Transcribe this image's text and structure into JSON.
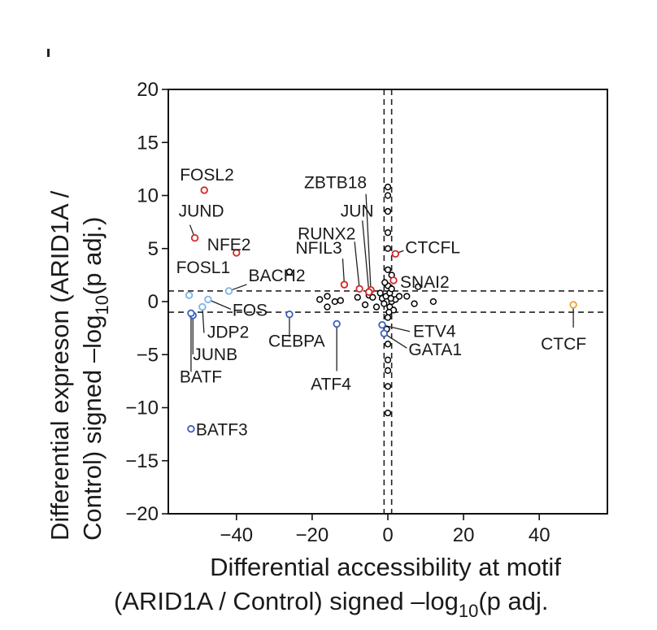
{
  "chart_data": {
    "type": "scatter",
    "xlabel_line1": "Differential accessibility at motif",
    "xlabel_line2": "(ARID1A / Control) signed –log",
    "xlabel_sub": "10",
    "xlabel_tail": "(p adj.",
    "ylabel_line1": "Differential expreson (ARID1A /",
    "ylabel_line2": "Control) signed –log",
    "ylabel_sub": "10",
    "ylabel_tail": "(p adj.)",
    "xlim": [
      -58,
      58
    ],
    "ylim": [
      -20,
      20
    ],
    "xticks": [
      -40,
      -20,
      0,
      20,
      40
    ],
    "yticks": [
      -20,
      -15,
      -10,
      -5,
      0,
      5,
      10,
      15,
      20
    ],
    "xtick_labels": [
      "−40",
      "−20",
      "0",
      "20",
      "40"
    ],
    "ytick_labels": [
      "−20",
      "−15",
      "−10",
      "−5",
      "0",
      "5",
      "10",
      "15",
      "20"
    ],
    "thresholds": {
      "x": [
        -1,
        1
      ],
      "y": [
        -1,
        1
      ]
    },
    "colors": {
      "up": "#d62728",
      "down": "#3b5fc0",
      "down_light": "#7fb2e5",
      "highlight": "#f0a030",
      "none": "#000000"
    },
    "labeled_points": [
      {
        "name": "FOSL2",
        "x": -48.5,
        "y": 10.5,
        "group": "up"
      },
      {
        "name": "JUND",
        "x": -51,
        "y": 6,
        "group": "up"
      },
      {
        "name": "NFE2",
        "x": -40,
        "y": 4.6,
        "group": "up"
      },
      {
        "name": "FOSL1",
        "x": -52.5,
        "y": 0.6,
        "group": "down_light"
      },
      {
        "name": "BACH2",
        "x": -42,
        "y": 1,
        "group": "down_light"
      },
      {
        "name": "FOS",
        "x": -47.5,
        "y": 0.2,
        "group": "down_light"
      },
      {
        "name": "JDP2",
        "x": -49,
        "y": -0.5,
        "group": "down_light"
      },
      {
        "name": "JUNB",
        "x": -51.5,
        "y": -1.3,
        "group": "down"
      },
      {
        "name": "BATF",
        "x": -52,
        "y": -1.1,
        "group": "down"
      },
      {
        "name": "BATF3",
        "x": -52,
        "y": -12,
        "group": "down"
      },
      {
        "name": "CEBPA",
        "x": -26,
        "y": -1.2,
        "group": "down"
      },
      {
        "name": "ATF4",
        "x": -13.5,
        "y": -2.1,
        "group": "down"
      },
      {
        "name": "ZBTB18",
        "x": -4.5,
        "y": 1.1,
        "group": "up"
      },
      {
        "name": "JUN",
        "x": -5,
        "y": 0.9,
        "group": "up"
      },
      {
        "name": "RUNX2",
        "x": -7.5,
        "y": 1.2,
        "group": "up"
      },
      {
        "name": "NFIL3",
        "x": -11.5,
        "y": 1.6,
        "group": "up"
      },
      {
        "name": "CTCFL",
        "x": 2,
        "y": 4.5,
        "group": "up"
      },
      {
        "name": "SNAI2",
        "x": 1.5,
        "y": 2,
        "group": "up"
      },
      {
        "name": "ETV4",
        "x": -1.5,
        "y": -2.2,
        "group": "down"
      },
      {
        "name": "GATA1",
        "x": -1,
        "y": -3,
        "group": "down"
      },
      {
        "name": "CTCF",
        "x": 49,
        "y": -0.3,
        "group": "highlight"
      }
    ],
    "other_points": [
      {
        "x": -26,
        "y": 2.8
      },
      {
        "x": -18,
        "y": 0.2
      },
      {
        "x": -16,
        "y": 0.5
      },
      {
        "x": -16,
        "y": -0.5
      },
      {
        "x": -14,
        "y": 0
      },
      {
        "x": -12.5,
        "y": 0.1
      },
      {
        "x": -8,
        "y": 0.4
      },
      {
        "x": -6,
        "y": -0.3
      },
      {
        "x": -5,
        "y": 0.6
      },
      {
        "x": -4,
        "y": 0.4
      },
      {
        "x": -3,
        "y": -0.5
      },
      {
        "x": -2,
        "y": 0.8
      },
      {
        "x": -1.5,
        "y": 0.3
      },
      {
        "x": -1,
        "y": -0.2
      },
      {
        "x": -0.5,
        "y": 0.5
      },
      {
        "x": 0,
        "y": 1.5
      },
      {
        "x": 0,
        "y": 3
      },
      {
        "x": 0,
        "y": 5
      },
      {
        "x": 0,
        "y": 6.5
      },
      {
        "x": 0,
        "y": 8.5
      },
      {
        "x": 0,
        "y": 10
      },
      {
        "x": 0,
        "y": 10.8
      },
      {
        "x": 0,
        "y": -1.5
      },
      {
        "x": 0,
        "y": -4
      },
      {
        "x": 0,
        "y": -5.5
      },
      {
        "x": 0,
        "y": -6.5
      },
      {
        "x": 0,
        "y": -8
      },
      {
        "x": 0,
        "y": -10.5
      },
      {
        "x": 0.5,
        "y": 0.8
      },
      {
        "x": 0.5,
        "y": -0.5
      },
      {
        "x": 1,
        "y": 2.5
      },
      {
        "x": 1,
        "y": 0
      },
      {
        "x": 1.5,
        "y": -0.8
      },
      {
        "x": 2,
        "y": 0.2
      },
      {
        "x": 3,
        "y": 0.5
      },
      {
        "x": 5,
        "y": 0.5
      },
      {
        "x": 7,
        "y": -0.2
      },
      {
        "x": 8,
        "y": 1.4
      },
      {
        "x": 12,
        "y": 0
      },
      {
        "x": 1,
        "y": 1.2
      },
      {
        "x": 0.8,
        "y": 0.3
      },
      {
        "x": -0.8,
        "y": 1.8
      },
      {
        "x": 0.3,
        "y": -1
      },
      {
        "x": -0.3,
        "y": -2.6
      }
    ]
  }
}
